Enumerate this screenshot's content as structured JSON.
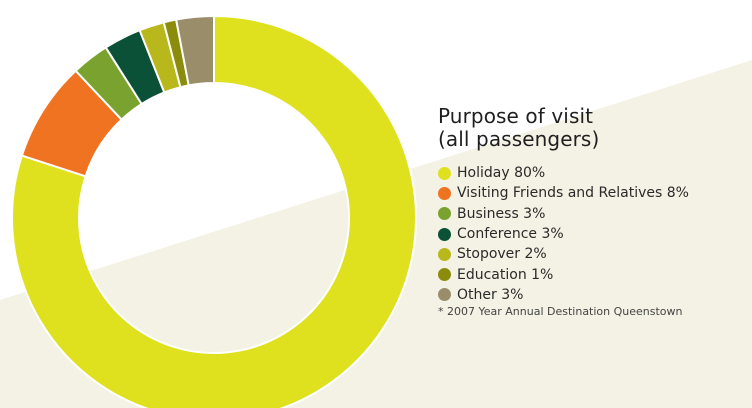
{
  "colors": {
    "background_band": "#f4f2e5"
  },
  "chart_data": {
    "type": "pie",
    "title": "Purpose of visit (all passengers)",
    "title_lines": [
      "Purpose of visit",
      "(all passengers)"
    ],
    "donut": true,
    "slices": [
      {
        "label": "Holiday",
        "value": 80,
        "legend_text": "Holiday 80%",
        "color": "#dfe11f"
      },
      {
        "label": "Visiting Friends and Relatives",
        "value": 8,
        "legend_text": "Visiting Friends and Relatives 8%",
        "color": "#f07322"
      },
      {
        "label": "Business",
        "value": 3,
        "legend_text": "Business 3%",
        "color": "#79a22e"
      },
      {
        "label": "Conference",
        "value": 3,
        "legend_text": "Conference 3%",
        "color": "#0a5138"
      },
      {
        "label": "Stopover",
        "value": 2,
        "legend_text": "Stopover 2%",
        "color": "#b8b71b"
      },
      {
        "label": "Education",
        "value": 1,
        "legend_text": "Education 1%",
        "color": "#8c8c0c"
      },
      {
        "label": "Other",
        "value": 3,
        "legend_text": "Other 3%",
        "color": "#9a8d6a"
      }
    ],
    "footnote": "* 2007 Year Annual Destination Queenstown",
    "legend_position": "right"
  }
}
